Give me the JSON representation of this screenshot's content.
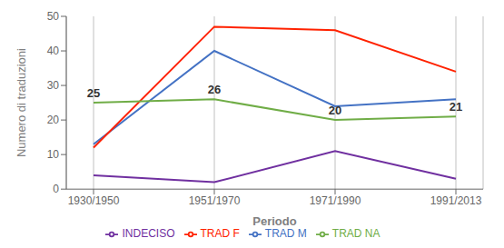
{
  "chart_data": {
    "type": "line",
    "xlabel": "Periodo",
    "ylabel": "Numero di traduzioni",
    "categories": [
      "1930/1950",
      "1951/1970",
      "1971/1990",
      "1991/2013"
    ],
    "series": [
      {
        "name": "TRAD M",
        "color": "#4472C4",
        "values": [
          13,
          40,
          24,
          26
        ]
      },
      {
        "name": "TRAD F",
        "color": "#FF2200",
        "values": [
          12,
          47,
          46,
          34
        ]
      },
      {
        "name": "TRAD NA",
        "color": "#70AD47",
        "values": [
          25,
          26,
          20,
          21
        ],
        "data_labels": true
      },
      {
        "name": "INDECISO",
        "color": "#7030A0",
        "values": [
          4,
          2,
          11,
          3
        ]
      }
    ],
    "ylim": [
      0,
      50
    ],
    "yticks": [
      0,
      10,
      20,
      30,
      40,
      50
    ],
    "grid": "x",
    "legend": "bottom"
  }
}
